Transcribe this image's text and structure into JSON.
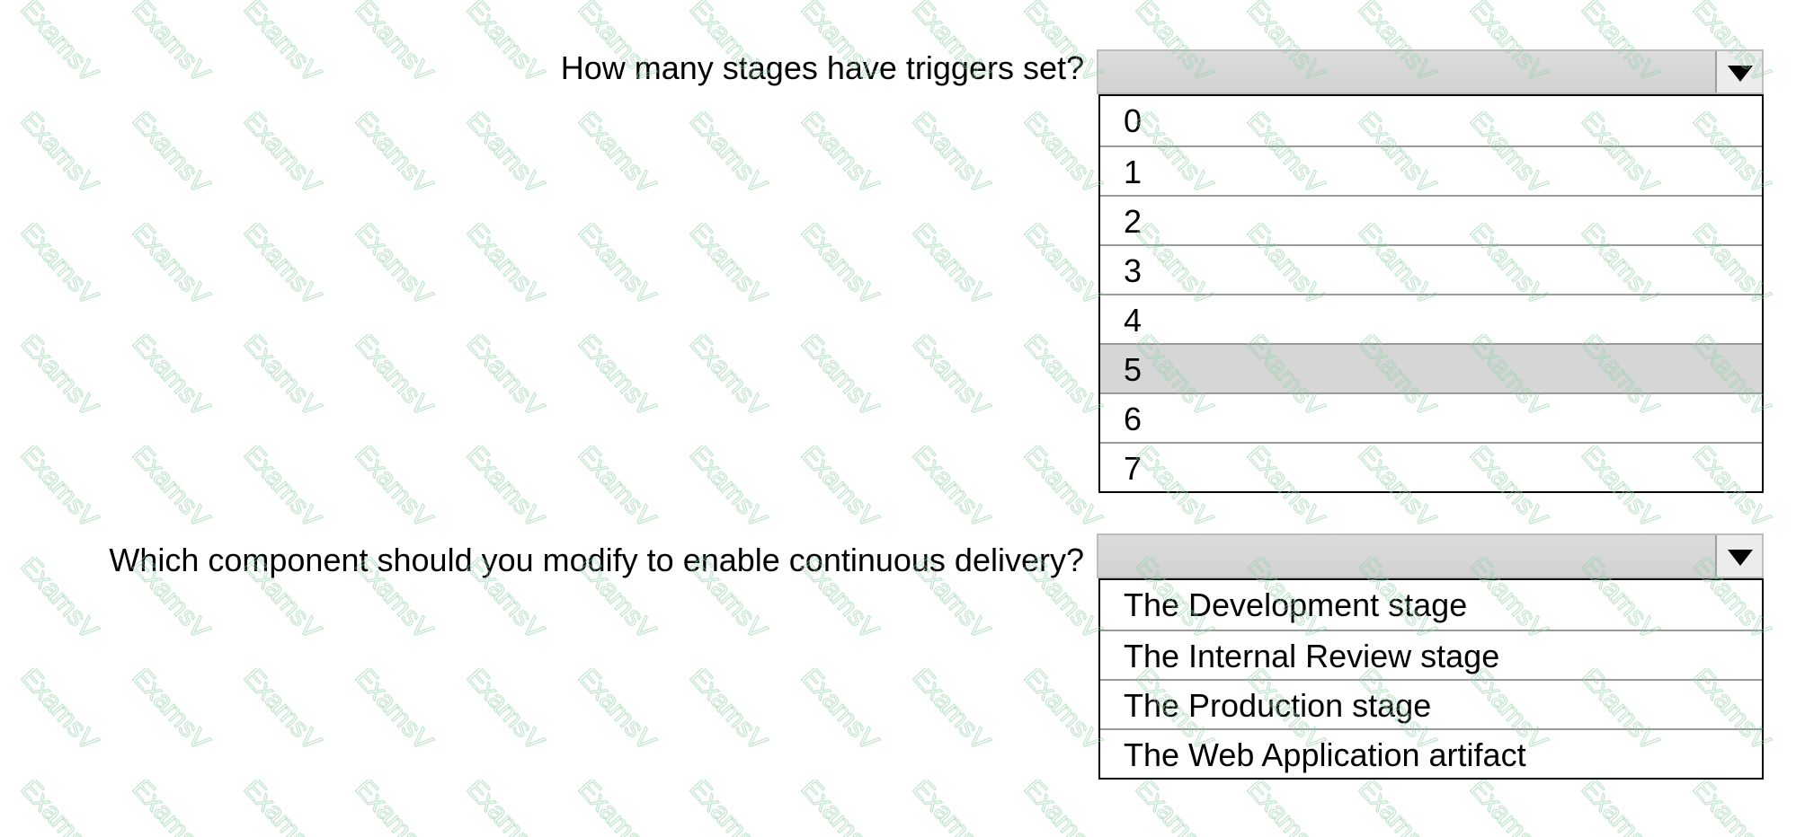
{
  "questions": [
    {
      "text": "How many stages have triggers set?",
      "selected_value": "",
      "options": [
        "0",
        "1",
        "2",
        "3",
        "4",
        "5",
        "6",
        "7"
      ],
      "highlighted_option": "5"
    },
    {
      "text": "Which component should you modify to enable continuous delivery?",
      "selected_value": "",
      "options": [
        "The Development stage",
        "The Internal Review stage",
        "The Production stage",
        "The Web Application artifact"
      ]
    }
  ],
  "icons": {
    "dropdown_arrow": "chevron-down-icon"
  },
  "colors": {
    "select_bg": "#d6d6d6",
    "highlight_bg": "#cfcfcf",
    "watermark": "#7fbf9b"
  }
}
